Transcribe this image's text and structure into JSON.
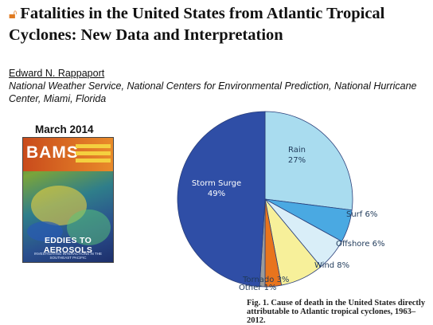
{
  "header": {
    "lock_icon": "open-access-lock-icon",
    "title": "Fatalities in the United States from Atlantic Tropical Cyclones: New Data and Interpretation",
    "author": "Edward N. Rappaport",
    "affiliation": "National Weather Service, National Centers for Environmental Prediction, National Hurricane Center, Miami, Florida"
  },
  "journal": {
    "issue": "March 2014",
    "cover_name": "BAMS",
    "cover_headline": "EDDIES TO AEROSOLS",
    "cover_subtitle": "INVESTIGATING INTERACTIONS IN THE SOUTHEAST PACIFIC"
  },
  "chart_data": {
    "type": "pie",
    "categories": [
      "Storm Surge",
      "Rain",
      "Surf",
      "Offshore",
      "Wind",
      "Tornado",
      "Other"
    ],
    "values": [
      49,
      27,
      6,
      6,
      8,
      3,
      1
    ],
    "labels": [
      "Storm Surge 49%",
      "Rain 27%",
      "Surf 6%",
      "Offshore 6%",
      "Wind 8%",
      "Tornado 3%",
      "Other 1%"
    ],
    "colors": [
      "#2f4ea6",
      "#a9dcef",
      "#4aa9e2",
      "#d9eef8",
      "#f7f09a",
      "#e8741d",
      "#9a9a9a"
    ],
    "caption": "Fig. 1. Cause of death in the United States directly attributable to Atlantic tropical cyclones, 1963–2012."
  }
}
